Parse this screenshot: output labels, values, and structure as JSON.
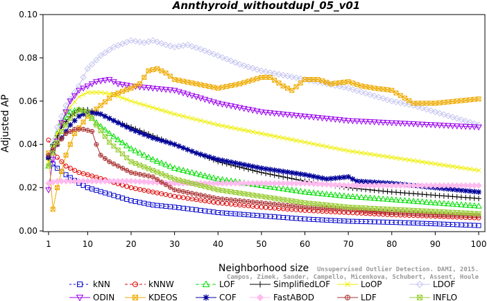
{
  "chart_data": {
    "type": "line",
    "title": "Annthyroid_withoutdupl_05_v01",
    "xlabel": "Neighborhood size",
    "ylabel": "Adjusted AP",
    "xlim": [
      1,
      100
    ],
    "ylim": [
      0,
      0.1
    ],
    "x_ticks": [
      1,
      10,
      20,
      30,
      40,
      50,
      60,
      70,
      80,
      90,
      100
    ],
    "y_ticks": [
      0.0,
      0.02,
      0.04,
      0.06,
      0.08,
      0.1
    ],
    "y_tick_labels": [
      "0.00",
      "0.02",
      "0.04",
      "0.06",
      "0.08",
      "0.10"
    ],
    "grid": false,
    "legend_position": "bottom",
    "watermark": [
      "Unsupervised Outlier Detection. DAMI, 2015.",
      "Campos, Zimek, Sander, Campello, Micenkova, Schubert, Assent, Houle"
    ],
    "series": [
      {
        "name": "kNN",
        "color": "#0000cc",
        "marker": "square",
        "dash": "3,3",
        "points": [
          [
            1,
            0.034
          ],
          [
            2,
            0.031
          ],
          [
            3,
            0.029
          ],
          [
            5,
            0.026
          ],
          [
            8,
            0.022
          ],
          [
            10,
            0.02
          ],
          [
            15,
            0.017
          ],
          [
            20,
            0.014
          ],
          [
            25,
            0.012
          ],
          [
            30,
            0.011
          ],
          [
            40,
            0.0085
          ],
          [
            50,
            0.007
          ],
          [
            60,
            0.0055
          ],
          [
            70,
            0.0045
          ],
          [
            80,
            0.004
          ],
          [
            90,
            0.0033
          ],
          [
            100,
            0.0025
          ]
        ]
      },
      {
        "name": "kNNW",
        "color": "#dd0000",
        "marker": "circle",
        "dash": "4,3",
        "points": [
          [
            1,
            0.042
          ],
          [
            2,
            0.038
          ],
          [
            3,
            0.034
          ],
          [
            5,
            0.03
          ],
          [
            8,
            0.027
          ],
          [
            10,
            0.026
          ],
          [
            15,
            0.023
          ],
          [
            20,
            0.02
          ],
          [
            25,
            0.018
          ],
          [
            30,
            0.016
          ],
          [
            40,
            0.013
          ],
          [
            50,
            0.011
          ],
          [
            60,
            0.0095
          ],
          [
            70,
            0.0085
          ],
          [
            80,
            0.0075
          ],
          [
            90,
            0.0068
          ],
          [
            100,
            0.006
          ]
        ]
      },
      {
        "name": "LOF",
        "color": "#00dd00",
        "marker": "triangle",
        "dash": "5,3",
        "points": [
          [
            1,
            0.03
          ],
          [
            2,
            0.04
          ],
          [
            4,
            0.05
          ],
          [
            6,
            0.055
          ],
          [
            8,
            0.056
          ],
          [
            10,
            0.054
          ],
          [
            12,
            0.05
          ],
          [
            15,
            0.045
          ],
          [
            20,
            0.038
          ],
          [
            25,
            0.033
          ],
          [
            30,
            0.029
          ],
          [
            40,
            0.024
          ],
          [
            50,
            0.021
          ],
          [
            60,
            0.018
          ],
          [
            70,
            0.016
          ],
          [
            80,
            0.0145
          ],
          [
            90,
            0.013
          ],
          [
            100,
            0.0115
          ]
        ]
      },
      {
        "name": "SimplifiedLOF",
        "color": "#000000",
        "marker": "plus",
        "dash": "",
        "points": [
          [
            1,
            0.033
          ],
          [
            2,
            0.04
          ],
          [
            4,
            0.048
          ],
          [
            6,
            0.053
          ],
          [
            8,
            0.056
          ],
          [
            10,
            0.056
          ],
          [
            13,
            0.054
          ],
          [
            16,
            0.051
          ],
          [
            20,
            0.048
          ],
          [
            25,
            0.044
          ],
          [
            30,
            0.04
          ],
          [
            35,
            0.036
          ],
          [
            40,
            0.032
          ],
          [
            50,
            0.027
          ],
          [
            60,
            0.023
          ],
          [
            70,
            0.02
          ],
          [
            80,
            0.018
          ],
          [
            90,
            0.0165
          ],
          [
            100,
            0.015
          ]
        ]
      },
      {
        "name": "LoOP",
        "color": "#eeee00",
        "marker": "x",
        "dash": "",
        "points": [
          [
            1,
            0.032
          ],
          [
            3,
            0.045
          ],
          [
            5,
            0.055
          ],
          [
            8,
            0.062
          ],
          [
            10,
            0.064
          ],
          [
            13,
            0.064
          ],
          [
            16,
            0.063
          ],
          [
            20,
            0.06
          ],
          [
            25,
            0.057
          ],
          [
            30,
            0.054
          ],
          [
            40,
            0.049
          ],
          [
            50,
            0.045
          ],
          [
            60,
            0.041
          ],
          [
            70,
            0.037
          ],
          [
            80,
            0.034
          ],
          [
            90,
            0.031
          ],
          [
            100,
            0.028
          ]
        ]
      },
      {
        "name": "LDOF",
        "color": "#c4c4f0",
        "marker": "diamond",
        "dash": "",
        "points": [
          [
            1,
            0.035
          ],
          [
            3,
            0.048
          ],
          [
            5,
            0.058
          ],
          [
            8,
            0.067
          ],
          [
            10,
            0.075
          ],
          [
            13,
            0.081
          ],
          [
            16,
            0.085
          ],
          [
            20,
            0.088
          ],
          [
            23,
            0.087
          ],
          [
            25,
            0.088
          ],
          [
            28,
            0.086
          ],
          [
            30,
            0.085
          ],
          [
            33,
            0.086
          ],
          [
            36,
            0.084
          ],
          [
            40,
            0.081
          ],
          [
            45,
            0.077
          ],
          [
            50,
            0.074
          ],
          [
            55,
            0.072
          ],
          [
            60,
            0.07
          ],
          [
            65,
            0.068
          ],
          [
            70,
            0.066
          ],
          [
            75,
            0.063
          ],
          [
            80,
            0.06
          ],
          [
            85,
            0.058
          ],
          [
            90,
            0.055
          ],
          [
            95,
            0.052
          ],
          [
            100,
            0.049
          ]
        ]
      },
      {
        "name": "ODIN",
        "color": "#9900ee",
        "marker": "triangle-down",
        "dash": "",
        "points": [
          [
            1,
            0.019
          ],
          [
            2,
            0.033
          ],
          [
            4,
            0.05
          ],
          [
            6,
            0.06
          ],
          [
            8,
            0.065
          ],
          [
            10,
            0.067
          ],
          [
            12,
            0.069
          ],
          [
            15,
            0.07
          ],
          [
            17,
            0.068
          ],
          [
            20,
            0.067
          ],
          [
            25,
            0.066
          ],
          [
            30,
            0.065
          ],
          [
            35,
            0.062
          ],
          [
            40,
            0.059
          ],
          [
            45,
            0.057
          ],
          [
            50,
            0.055
          ],
          [
            60,
            0.053
          ],
          [
            70,
            0.051
          ],
          [
            80,
            0.05
          ],
          [
            90,
            0.049
          ],
          [
            100,
            0.048
          ]
        ]
      },
      {
        "name": "KDEOS",
        "color": "#eeaa00",
        "marker": "square-x",
        "dash": "",
        "points": [
          [
            1,
            0.036
          ],
          [
            2,
            0.01
          ],
          [
            3,
            0.02
          ],
          [
            5,
            0.035
          ],
          [
            7,
            0.045
          ],
          [
            10,
            0.053
          ],
          [
            13,
            0.058
          ],
          [
            16,
            0.063
          ],
          [
            20,
            0.066
          ],
          [
            22,
            0.068
          ],
          [
            24,
            0.074
          ],
          [
            26,
            0.075
          ],
          [
            28,
            0.073
          ],
          [
            30,
            0.07
          ],
          [
            35,
            0.068
          ],
          [
            40,
            0.066
          ],
          [
            45,
            0.068
          ],
          [
            50,
            0.071
          ],
          [
            52,
            0.071
          ],
          [
            55,
            0.067
          ],
          [
            57,
            0.065
          ],
          [
            60,
            0.07
          ],
          [
            63,
            0.07
          ],
          [
            66,
            0.068
          ],
          [
            70,
            0.069
          ],
          [
            73,
            0.067
          ],
          [
            76,
            0.066
          ],
          [
            80,
            0.065
          ],
          [
            85,
            0.059
          ],
          [
            90,
            0.059
          ],
          [
            95,
            0.06
          ],
          [
            100,
            0.061
          ]
        ]
      },
      {
        "name": "COF",
        "color": "#000099",
        "marker": "star",
        "dash": "",
        "points": [
          [
            1,
            0.034
          ],
          [
            2,
            0.037
          ],
          [
            4,
            0.043
          ],
          [
            6,
            0.049
          ],
          [
            8,
            0.053
          ],
          [
            10,
            0.055
          ],
          [
            13,
            0.054
          ],
          [
            16,
            0.051
          ],
          [
            20,
            0.047
          ],
          [
            25,
            0.043
          ],
          [
            30,
            0.04
          ],
          [
            35,
            0.036
          ],
          [
            40,
            0.033
          ],
          [
            50,
            0.029
          ],
          [
            60,
            0.026
          ],
          [
            65,
            0.024
          ],
          [
            70,
            0.025
          ],
          [
            72,
            0.023
          ],
          [
            80,
            0.022
          ],
          [
            90,
            0.02
          ],
          [
            100,
            0.018
          ]
        ]
      },
      {
        "name": "FastABOD",
        "color": "#ffbbee",
        "marker": "diamond-filled",
        "dash": "",
        "points": [
          [
            1,
            0.022
          ],
          [
            3,
            0.023
          ],
          [
            5,
            0.023
          ],
          [
            10,
            0.023
          ],
          [
            20,
            0.023
          ],
          [
            30,
            0.022
          ],
          [
            40,
            0.022
          ],
          [
            50,
            0.022
          ],
          [
            60,
            0.022
          ],
          [
            70,
            0.021
          ],
          [
            80,
            0.021
          ],
          [
            90,
            0.021
          ],
          [
            100,
            0.021
          ]
        ]
      },
      {
        "name": "LDF",
        "color": "#aa3333",
        "marker": "circle-plus",
        "dash": "",
        "points": [
          [
            1,
            0.035
          ],
          [
            3,
            0.04
          ],
          [
            5,
            0.045
          ],
          [
            7,
            0.047
          ],
          [
            9,
            0.047
          ],
          [
            11,
            0.046
          ],
          [
            12,
            0.04
          ],
          [
            13,
            0.035
          ],
          [
            15,
            0.032
          ],
          [
            20,
            0.027
          ],
          [
            25,
            0.025
          ],
          [
            30,
            0.019
          ],
          [
            40,
            0.015
          ],
          [
            50,
            0.013
          ],
          [
            60,
            0.011
          ],
          [
            70,
            0.01
          ],
          [
            80,
            0.0085
          ],
          [
            90,
            0.0075
          ],
          [
            100,
            0.007
          ]
        ]
      },
      {
        "name": "INFLO",
        "color": "#99cc33",
        "marker": "square-x",
        "dash": "",
        "points": [
          [
            1,
            0.03
          ],
          [
            2,
            0.036
          ],
          [
            4,
            0.046
          ],
          [
            6,
            0.052
          ],
          [
            8,
            0.056
          ],
          [
            10,
            0.055
          ],
          [
            12,
            0.049
          ],
          [
            15,
            0.041
          ],
          [
            20,
            0.032
          ],
          [
            25,
            0.028
          ],
          [
            30,
            0.024
          ],
          [
            40,
            0.019
          ],
          [
            50,
            0.016
          ],
          [
            60,
            0.013
          ],
          [
            70,
            0.011
          ],
          [
            80,
            0.01
          ],
          [
            90,
            0.009
          ],
          [
            100,
            0.008
          ]
        ]
      }
    ]
  }
}
